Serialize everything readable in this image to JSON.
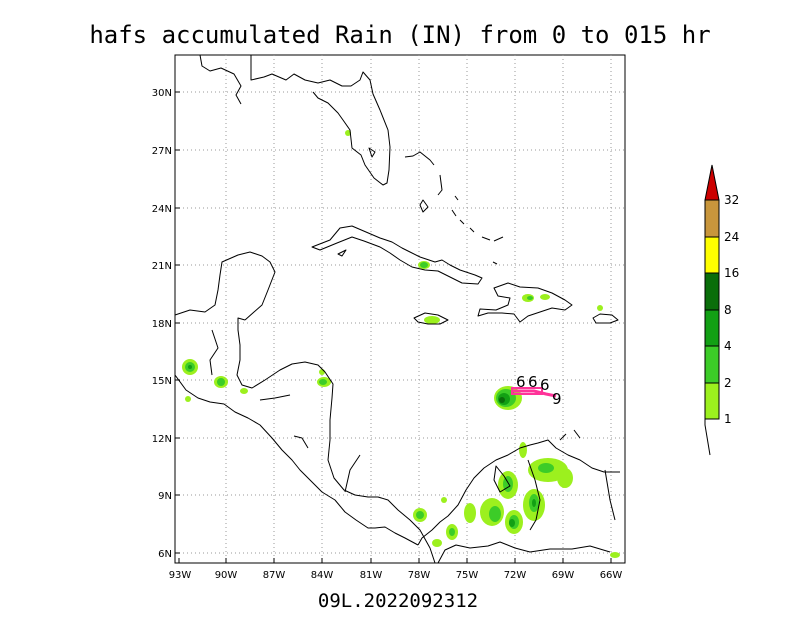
{
  "title": "hafs accumulated Rain (IN) from 0 to 015 hr",
  "footer": "09L.2022092312",
  "map": {
    "lon_ticks": [
      "93W",
      "90W",
      "87W",
      "84W",
      "81W",
      "78W",
      "75W",
      "72W",
      "69W",
      "66W"
    ],
    "lat_ticks": [
      "30N",
      "27N",
      "24N",
      "21N",
      "18N",
      "15N",
      "12N",
      "9N",
      "6N"
    ]
  },
  "colorbar": {
    "labels": [
      "1",
      "2",
      "4",
      "8",
      "16",
      "24",
      "32"
    ],
    "colors": [
      "#9cf01e",
      "#3ccc28",
      "#12a014",
      "#0a6e0a",
      "#ffff00",
      "#c8963c",
      "#f09628",
      "#cc0000"
    ]
  },
  "storm_track": {
    "color": "#ff3399",
    "symbols": [
      "6",
      "6",
      "6",
      "9"
    ]
  }
}
